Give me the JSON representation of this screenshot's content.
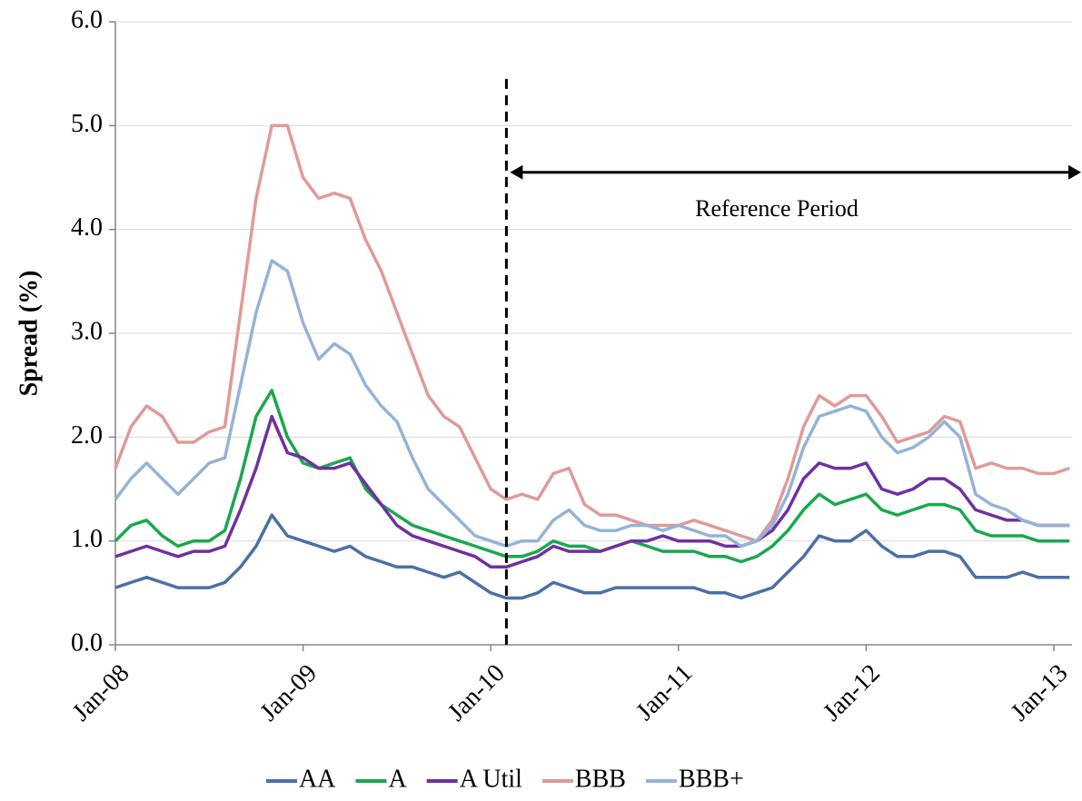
{
  "chart_data": {
    "type": "line",
    "y_label": "Spread (%)",
    "x": [
      "Jan-08",
      "Feb-08",
      "Mar-08",
      "Apr-08",
      "May-08",
      "Jun-08",
      "Jul-08",
      "Aug-08",
      "Sep-08",
      "Oct-08",
      "Nov-08",
      "Dec-08",
      "Jan-09",
      "Feb-09",
      "Mar-09",
      "Apr-09",
      "May-09",
      "Jun-09",
      "Jul-09",
      "Aug-09",
      "Sep-09",
      "Oct-09",
      "Nov-09",
      "Dec-09",
      "Jan-10",
      "Feb-10",
      "Mar-10",
      "Apr-10",
      "May-10",
      "Jun-10",
      "Jul-10",
      "Aug-10",
      "Sep-10",
      "Oct-10",
      "Nov-10",
      "Dec-10",
      "Jan-11",
      "Feb-11",
      "Mar-11",
      "Apr-11",
      "May-11",
      "Jun-11",
      "Jul-11",
      "Aug-11",
      "Sep-11",
      "Oct-11",
      "Nov-11",
      "Dec-11",
      "Jan-12",
      "Feb-12",
      "Mar-12",
      "Apr-12",
      "May-12",
      "Jun-12",
      "Jul-12",
      "Aug-12",
      "Sep-12",
      "Oct-12",
      "Nov-12",
      "Dec-12",
      "Jan-13",
      "Feb-13"
    ],
    "xticks": [
      "Jan-08",
      "Jan-09",
      "Jan-10",
      "Jan-11",
      "Jan-12",
      "Jan-13"
    ],
    "ylim": [
      0,
      6
    ],
    "yticks": [
      {
        "value": 0,
        "label": "0.0"
      },
      {
        "value": 1,
        "label": "1.0"
      },
      {
        "value": 2,
        "label": "2.0"
      },
      {
        "value": 3,
        "label": "3.0"
      },
      {
        "value": 4,
        "label": "4.0"
      },
      {
        "value": 5,
        "label": "5.0"
      },
      {
        "value": 6,
        "label": "6.0"
      }
    ],
    "grid": true,
    "legend": "bottom",
    "series": [
      {
        "name": "AA",
        "color": "#4a70a5",
        "values": [
          0.55,
          0.6,
          0.65,
          0.6,
          0.55,
          0.55,
          0.55,
          0.6,
          0.75,
          0.95,
          1.25,
          1.05,
          1.0,
          0.95,
          0.9,
          0.95,
          0.85,
          0.8,
          0.75,
          0.75,
          0.7,
          0.65,
          0.7,
          0.6,
          0.5,
          0.45,
          0.45,
          0.5,
          0.6,
          0.55,
          0.5,
          0.5,
          0.55,
          0.55,
          0.55,
          0.55,
          0.55,
          0.55,
          0.5,
          0.5,
          0.45,
          0.5,
          0.55,
          0.7,
          0.85,
          1.05,
          1.0,
          1.0,
          1.1,
          0.95,
          0.85,
          0.85,
          0.9,
          0.9,
          0.85,
          0.65,
          0.65,
          0.65,
          0.7,
          0.65,
          0.65,
          0.65
        ]
      },
      {
        "name": "A",
        "color": "#19a84d",
        "values": [
          1.0,
          1.15,
          1.2,
          1.05,
          0.95,
          1.0,
          1.0,
          1.1,
          1.6,
          2.2,
          2.45,
          2.0,
          1.75,
          1.7,
          1.75,
          1.8,
          1.5,
          1.35,
          1.25,
          1.15,
          1.1,
          1.05,
          1.0,
          0.95,
          0.9,
          0.85,
          0.85,
          0.9,
          1.0,
          0.95,
          0.95,
          0.9,
          0.95,
          1.0,
          0.95,
          0.9,
          0.9,
          0.9,
          0.85,
          0.85,
          0.8,
          0.85,
          0.95,
          1.1,
          1.3,
          1.45,
          1.35,
          1.4,
          1.45,
          1.3,
          1.25,
          1.3,
          1.35,
          1.35,
          1.3,
          1.1,
          1.05,
          1.05,
          1.05,
          1.0,
          1.0,
          1.0
        ]
      },
      {
        "name": "A Util",
        "color": "#7030a0",
        "values": [
          0.85,
          0.9,
          0.95,
          0.9,
          0.85,
          0.9,
          0.9,
          0.95,
          1.3,
          1.7,
          2.2,
          1.85,
          1.8,
          1.7,
          1.7,
          1.75,
          1.55,
          1.35,
          1.15,
          1.05,
          1.0,
          0.95,
          0.9,
          0.85,
          0.75,
          0.75,
          0.8,
          0.85,
          0.95,
          0.9,
          0.9,
          0.9,
          0.95,
          1.0,
          1.0,
          1.05,
          1.0,
          1.0,
          1.0,
          0.95,
          0.95,
          1.0,
          1.1,
          1.3,
          1.6,
          1.75,
          1.7,
          1.7,
          1.75,
          1.5,
          1.45,
          1.5,
          1.6,
          1.6,
          1.5,
          1.3,
          1.25,
          1.2,
          1.2,
          1.15,
          1.15,
          1.15
        ]
      },
      {
        "name": "BBB",
        "color": "#e09a98",
        "values": [
          1.7,
          2.1,
          2.3,
          2.2,
          1.95,
          1.95,
          2.05,
          2.1,
          3.2,
          4.3,
          5.0,
          5.0,
          4.5,
          4.3,
          4.35,
          4.3,
          3.9,
          3.6,
          3.2,
          2.8,
          2.4,
          2.2,
          2.1,
          1.8,
          1.5,
          1.4,
          1.45,
          1.4,
          1.65,
          1.7,
          1.35,
          1.25,
          1.25,
          1.2,
          1.15,
          1.15,
          1.15,
          1.2,
          1.15,
          1.1,
          1.05,
          1.0,
          1.2,
          1.6,
          2.1,
          2.4,
          2.3,
          2.4,
          2.4,
          2.2,
          1.95,
          2.0,
          2.05,
          2.2,
          2.15,
          1.7,
          1.75,
          1.7,
          1.7,
          1.65,
          1.65,
          1.7
        ]
      },
      {
        "name": "BBB+",
        "color": "#95b3d7",
        "values": [
          1.4,
          1.6,
          1.75,
          1.6,
          1.45,
          1.6,
          1.75,
          1.8,
          2.5,
          3.2,
          3.7,
          3.6,
          3.1,
          2.75,
          2.9,
          2.8,
          2.5,
          2.3,
          2.15,
          1.8,
          1.5,
          1.35,
          1.2,
          1.05,
          1.0,
          0.95,
          1.0,
          1.0,
          1.2,
          1.3,
          1.15,
          1.1,
          1.1,
          1.15,
          1.15,
          1.1,
          1.15,
          1.1,
          1.05,
          1.05,
          0.95,
          1.0,
          1.15,
          1.45,
          1.9,
          2.2,
          2.25,
          2.3,
          2.25,
          2.0,
          1.85,
          1.9,
          2.0,
          2.15,
          2.0,
          1.45,
          1.35,
          1.3,
          1.2,
          1.15,
          1.15,
          1.15
        ]
      }
    ],
    "annotation": {
      "text": "Reference Period",
      "start": "Feb-10"
    }
  }
}
